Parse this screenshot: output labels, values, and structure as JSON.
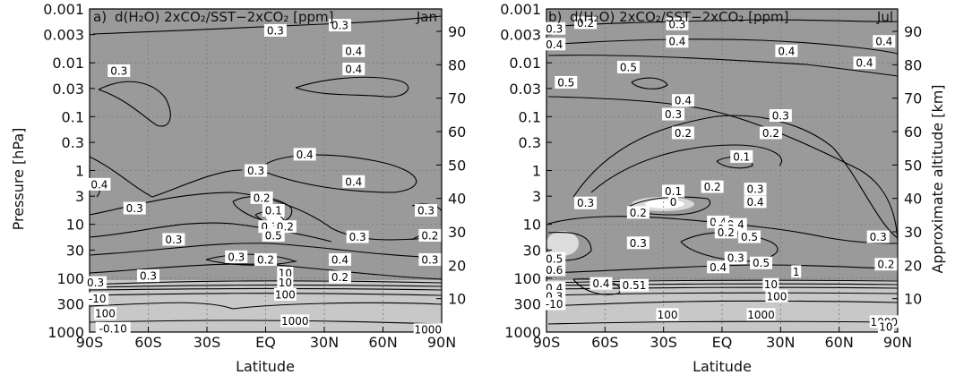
{
  "figure": {
    "ylabel_left": "Pressure [hPa]",
    "ylabel_right": "Approximate altitude [km]"
  },
  "chart_data": [
    {
      "type": "contour",
      "panel_label": "a)",
      "title": "d(H₂O) 2xCO₂/SST−2xCO₂ [ppm]",
      "month": "Jan",
      "xlabel": "Latitude",
      "x_ticks": [
        "90S",
        "60S",
        "30S",
        "EQ",
        "30N",
        "60N",
        "90N"
      ],
      "y_ticks": [
        "0.001",
        "0.003",
        "0.01",
        "0.03",
        "0.1",
        "0.3",
        "1",
        "3",
        "10",
        "30",
        "100",
        "300",
        "1000"
      ],
      "y2_ticks": [
        "90",
        "80",
        "70",
        "60",
        "50",
        "40",
        "30",
        "20",
        "10"
      ],
      "y_scale": "log",
      "ylim": [
        1000,
        0.001
      ],
      "contour_labels": [
        {
          "text": "0.3",
          "lat": 5,
          "p": 0.0025
        },
        {
          "text": "0.3",
          "lat": 38,
          "p": 0.002
        },
        {
          "text": "0.4",
          "lat": 45,
          "p": 0.006
        },
        {
          "text": "0.4",
          "lat": 45,
          "p": 0.013
        },
        {
          "text": "0.3",
          "lat": -75,
          "p": 0.014
        },
        {
          "text": "0.4",
          "lat": 20,
          "p": 0.5
        },
        {
          "text": "0.3",
          "lat": -5,
          "p": 1.0
        },
        {
          "text": "0.4",
          "lat": 45,
          "p": 1.6
        },
        {
          "text": "0.4",
          "lat": -85,
          "p": 1.8
        },
        {
          "text": "0.3",
          "lat": -67,
          "p": 5
        },
        {
          "text": "0.2",
          "lat": -2,
          "p": 3.2
        },
        {
          "text": "0.1",
          "lat": 4,
          "p": 5.5
        },
        {
          "text": "0.3",
          "lat": 2,
          "p": 11
        },
        {
          "text": "0.2",
          "lat": 10,
          "p": 11
        },
        {
          "text": "0.5",
          "lat": 4,
          "p": 16
        },
        {
          "text": "0.3",
          "lat": -47,
          "p": 19
        },
        {
          "text": "0.3",
          "lat": 47,
          "p": 17
        },
        {
          "text": "0.3",
          "lat": 82,
          "p": 5.5
        },
        {
          "text": "0.2",
          "lat": 84,
          "p": 16
        },
        {
          "text": "0.3",
          "lat": -15,
          "p": 40
        },
        {
          "text": "0.2",
          "lat": 0,
          "p": 45
        },
        {
          "text": "0.4",
          "lat": 38,
          "p": 45
        },
        {
          "text": "0.3",
          "lat": -60,
          "p": 90
        },
        {
          "text": "0.2",
          "lat": 38,
          "p": 95
        },
        {
          "text": "0.3",
          "lat": 84,
          "p": 45
        },
        {
          "text": "0.3",
          "lat": -87,
          "p": 120
        },
        {
          "text": "10",
          "lat": 10,
          "p": 80
        },
        {
          "text": "10",
          "lat": 10,
          "p": 120
        },
        {
          "text": "100",
          "lat": 10,
          "p": 200
        },
        {
          "text": "-10",
          "lat": -86,
          "p": 240
        },
        {
          "text": "100",
          "lat": -82,
          "p": 450
        },
        {
          "text": "-0.10",
          "lat": -78,
          "p": 850
        },
        {
          "text": "1000",
          "lat": 15,
          "p": 620
        },
        {
          "text": "1000",
          "lat": 83,
          "p": 900
        }
      ]
    },
    {
      "type": "contour",
      "panel_label": "b)",
      "title": "d(H₂O) 2xCO₂/SST−2xCO₂ [ppm]",
      "month": "Jul",
      "xlabel": "Latitude",
      "x_ticks": [
        "90S",
        "60S",
        "30S",
        "EQ",
        "30N",
        "60N",
        "90N"
      ],
      "y_ticks": [
        "0.001",
        "0.003",
        "0.01",
        "0.03",
        "0.1",
        "0.3",
        "1",
        "3",
        "10",
        "30",
        "100",
        "300",
        "1000"
      ],
      "y2_ticks": [
        "90",
        "80",
        "70",
        "60",
        "50",
        "40",
        "30",
        "20",
        "10"
      ],
      "y_scale": "log",
      "ylim": [
        1000,
        0.001
      ],
      "contour_labels": [
        {
          "text": "0.3",
          "lat": -86,
          "p": 0.0023
        },
        {
          "text": "0.2",
          "lat": -70,
          "p": 0.0018
        },
        {
          "text": "0.3",
          "lat": -23,
          "p": 0.0019
        },
        {
          "text": "0.4",
          "lat": -86,
          "p": 0.0045
        },
        {
          "text": "0.4",
          "lat": -23,
          "p": 0.004
        },
        {
          "text": "0.4",
          "lat": 33,
          "p": 0.006
        },
        {
          "text": "0.4",
          "lat": 83,
          "p": 0.004
        },
        {
          "text": "0.4",
          "lat": 73,
          "p": 0.01
        },
        {
          "text": "0.5",
          "lat": -80,
          "p": 0.023
        },
        {
          "text": "0.5",
          "lat": -48,
          "p": 0.012
        },
        {
          "text": "0.4",
          "lat": -20,
          "p": 0.05
        },
        {
          "text": "0.3",
          "lat": -25,
          "p": 0.09
        },
        {
          "text": "0.3",
          "lat": 30,
          "p": 0.095
        },
        {
          "text": "0.2",
          "lat": -20,
          "p": 0.2
        },
        {
          "text": "0.2",
          "lat": 25,
          "p": 0.2
        },
        {
          "text": "0.1",
          "lat": 10,
          "p": 0.55
        },
        {
          "text": "0.1",
          "lat": -25,
          "p": 2.4
        },
        {
          "text": "0",
          "lat": -25,
          "p": 3.8
        },
        {
          "text": "0.2",
          "lat": -5,
          "p": 2
        },
        {
          "text": "0.3",
          "lat": 17,
          "p": 2.2
        },
        {
          "text": "0.4",
          "lat": 17,
          "p": 3.8
        },
        {
          "text": "0.2",
          "lat": -43,
          "p": 6
        },
        {
          "text": "0.3",
          "lat": -70,
          "p": 4
        },
        {
          "text": "0.4",
          "lat": -2,
          "p": 9
        },
        {
          "text": "0.4",
          "lat": 7,
          "p": 10
        },
        {
          "text": "0.3",
          "lat": 2,
          "p": 12
        },
        {
          "text": "0.2",
          "lat": 2,
          "p": 14
        },
        {
          "text": "0.5",
          "lat": 14,
          "p": 17
        },
        {
          "text": "0.3",
          "lat": -43,
          "p": 22
        },
        {
          "text": "0.3",
          "lat": 80,
          "p": 17
        },
        {
          "text": "0.5",
          "lat": -86,
          "p": 43
        },
        {
          "text": "0.6",
          "lat": -86,
          "p": 70
        },
        {
          "text": "0.3",
          "lat": 7,
          "p": 42
        },
        {
          "text": "0.5",
          "lat": 20,
          "p": 52
        },
        {
          "text": "0.4",
          "lat": -2,
          "p": 62
        },
        {
          "text": "1",
          "lat": 38,
          "p": 75
        },
        {
          "text": "0.2",
          "lat": 84,
          "p": 55
        },
        {
          "text": "0.4",
          "lat": -86,
          "p": 150
        },
        {
          "text": "0.4",
          "lat": -62,
          "p": 125
        },
        {
          "text": "0.51",
          "lat": -45,
          "p": 135
        },
        {
          "text": "10",
          "lat": 25,
          "p": 130
        },
        {
          "text": "0.3",
          "lat": -86,
          "p": 215
        },
        {
          "text": "-10",
          "lat": -86,
          "p": 300
        },
        {
          "text": "100",
          "lat": 28,
          "p": 215
        },
        {
          "text": "100",
          "lat": -28,
          "p": 470
        },
        {
          "text": "1000",
          "lat": 20,
          "p": 470
        },
        {
          "text": "1000",
          "lat": 83,
          "p": 640
        },
        {
          "text": "10",
          "lat": 84,
          "p": 800
        }
      ]
    }
  ]
}
